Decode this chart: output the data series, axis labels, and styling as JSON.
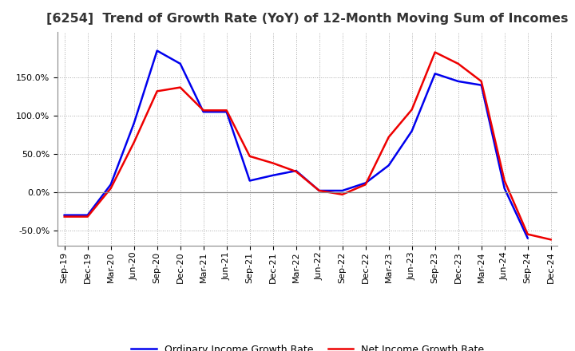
{
  "title": "[6254]  Trend of Growth Rate (YoY) of 12-Month Moving Sum of Incomes",
  "x_labels": [
    "Sep-19",
    "Dec-19",
    "Mar-20",
    "Jun-20",
    "Sep-20",
    "Dec-20",
    "Mar-21",
    "Jun-21",
    "Sep-21",
    "Dec-21",
    "Mar-22",
    "Jun-22",
    "Sep-22",
    "Dec-22",
    "Mar-23",
    "Jun-23",
    "Sep-23",
    "Dec-23",
    "Mar-24",
    "Jun-24",
    "Sep-24",
    "Dec-24"
  ],
  "ordinary_income": [
    -30,
    -30,
    10,
    90,
    185,
    168,
    105,
    105,
    15,
    22,
    28,
    2,
    2,
    12,
    35,
    80,
    155,
    145,
    140,
    5,
    -60,
    null
  ],
  "net_income": [
    -32,
    -32,
    5,
    65,
    132,
    137,
    107,
    107,
    47,
    38,
    27,
    2,
    -3,
    10,
    72,
    108,
    183,
    168,
    145,
    15,
    -55,
    -62
  ],
  "ordinary_color": "#0000ee",
  "net_color": "#ee0000",
  "background_color": "#FFFFFF",
  "grid_color": "#aaaaaa",
  "ylim": [
    -70,
    210
  ],
  "yticks": [
    -50.0,
    0.0,
    50.0,
    100.0,
    150.0
  ],
  "legend_labels": [
    "Ordinary Income Growth Rate",
    "Net Income Growth Rate"
  ],
  "title_fontsize": 11.5,
  "tick_fontsize": 8,
  "legend_fontsize": 9
}
